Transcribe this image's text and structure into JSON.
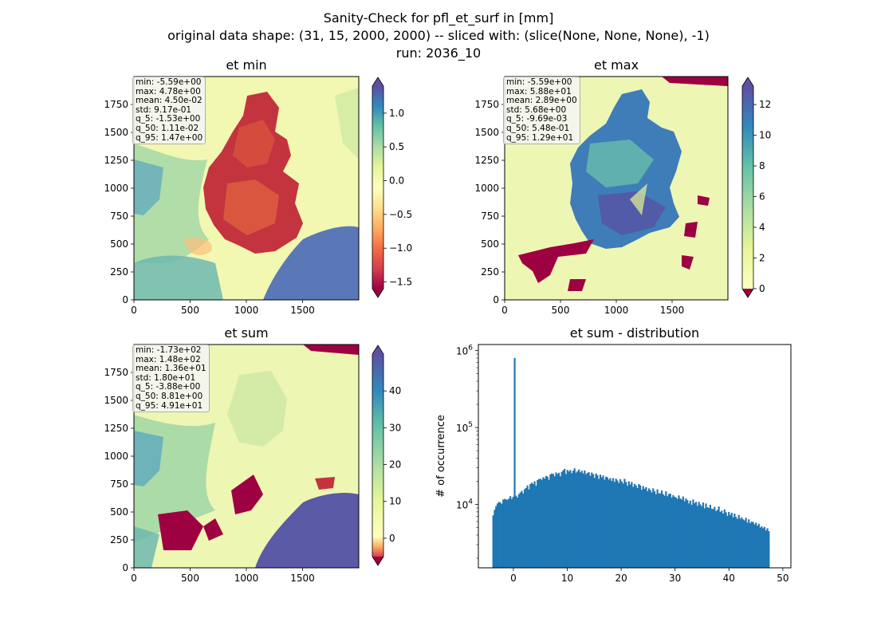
{
  "figure": {
    "title_lines": [
      "Sanity-Check for pfl_et_surf in [mm]",
      "original data shape: (31, 15, 2000, 2000) -- sliced with: (slice(None, None, None), -1)",
      "run: 2036_10"
    ]
  },
  "panels": [
    {
      "title": "et min",
      "stats": [
        "min: -5.59e+00",
        "max: 4.78e+00",
        "mean: 4.50e-02",
        "std: 9.17e-01",
        "q_5: -1.53e+00",
        "q_50: 1.11e-02",
        "q_95: 1.47e+00"
      ],
      "xticks": [
        "0",
        "500",
        "1000",
        "1500"
      ],
      "yticks": [
        "0",
        "250",
        "500",
        "750",
        "1000",
        "1250",
        "1500",
        "1750"
      ],
      "colorbar": {
        "vmin": -1.6,
        "vmax": 1.4,
        "ticks": [
          "1.0",
          "0.5",
          "0.0",
          "−0.5",
          "−1.0",
          "−1.5"
        ],
        "tick_values": [
          1.0,
          0.5,
          0.0,
          -0.5,
          -1.0,
          -1.5
        ]
      }
    },
    {
      "title": "et max",
      "stats": [
        "min: -5.59e+00",
        "max: 5.88e+01",
        "mean: 2.89e+00",
        "std: 5.68e+00",
        "q_5: -9.69e-03",
        "q_50: 5.48e-01",
        "q_95: 1.29e+01"
      ],
      "xticks": [
        "0",
        "500",
        "1000",
        "1500"
      ],
      "yticks": [
        "0",
        "250",
        "500",
        "750",
        "1000",
        "1250",
        "1500",
        "1750"
      ],
      "colorbar": {
        "vmin": 0,
        "vmax": 13.2,
        "ticks": [
          "12",
          "10",
          "8",
          "6",
          "4",
          "2",
          "0"
        ],
        "tick_values": [
          12,
          10,
          8,
          6,
          4,
          2,
          0
        ]
      }
    },
    {
      "title": "et sum",
      "stats": [
        "min: -1.73e+02",
        "max: 1.48e+02",
        "mean: 1.36e+01",
        "std: 1.80e+01",
        "q_5: -3.88e+00",
        "q_50: 8.81e+00",
        "q_95: 4.91e+01"
      ],
      "xticks": [
        "0",
        "500",
        "1000",
        "1500"
      ],
      "yticks": [
        "0",
        "250",
        "500",
        "750",
        "1000",
        "1250",
        "1500",
        "1750"
      ],
      "colorbar": {
        "vmin": -5,
        "vmax": 50,
        "ticks": [
          "40",
          "30",
          "20",
          "10",
          "0"
        ],
        "tick_values": [
          40,
          30,
          20,
          10,
          0
        ]
      }
    }
  ],
  "chart_data": {
    "type": "bar",
    "title": "et sum - distribution",
    "xlabel": "",
    "ylabel": "# of occurrence",
    "yscale": "log",
    "xlim": [
      -6.5,
      51.5
    ],
    "ylim": [
      1500,
      1200000
    ],
    "xticks": [
      "0",
      "10",
      "20",
      "30",
      "40",
      "50"
    ],
    "yticks": [
      "10^4",
      "10^5",
      "10^6"
    ],
    "color": "#1f77b4",
    "bins_x_start": -3.9,
    "bin_width": 0.265,
    "values": [
      7200,
      8500,
      9500,
      10300,
      10800,
      10600,
      10200,
      11600,
      11800,
      11600,
      11500,
      11900,
      12800,
      11800,
      12600,
      800000,
      13000,
      12300,
      13600,
      14300,
      15000,
      13900,
      15800,
      16400,
      17700,
      15700,
      18400,
      19200,
      18400,
      20000,
      17500,
      20700,
      21400,
      21600,
      20900,
      22600,
      21700,
      23500,
      23000,
      21000,
      24500,
      25300,
      24900,
      23200,
      26000,
      24800,
      25800,
      23200,
      26500,
      27800,
      29000,
      24800,
      28100,
      26800,
      28000,
      25500,
      27500,
      29500,
      25900,
      26900,
      28500,
      26200,
      27400,
      25300,
      27600,
      24700,
      25800,
      26200,
      23600,
      26000,
      24800,
      22200,
      25300,
      24000,
      21500,
      24400,
      22600,
      23800,
      21000,
      23000,
      22500,
      21000,
      22000,
      20200,
      22000,
      19600,
      21600,
      20500,
      19000,
      21300,
      19900,
      18700,
      21500,
      19600,
      17500,
      20000,
      18200,
      19600,
      16900,
      18500,
      17600,
      16300,
      18400,
      17700,
      15500,
      17300,
      16000,
      16800,
      14900,
      16200,
      15400,
      14300,
      16200,
      14800,
      13600,
      15700,
      14000,
      13900,
      15200,
      13600,
      13000,
      14800,
      12800,
      13700,
      13800,
      12300,
      13200,
      12600,
      12300,
      11800,
      13100,
      12000,
      11600,
      12700,
      11000,
      12000,
      11400,
      10300,
      11200,
      9900,
      11600,
      10400,
      10800,
      9600,
      10800,
      10000,
      9500,
      10600,
      8900,
      10300,
      9200,
      9000,
      9900,
      8800,
      8700,
      9300,
      8200,
      8500,
      9400,
      8000,
      8300,
      7600,
      8600,
      7900,
      7100,
      8000,
      7300,
      7800,
      6800,
      7600,
      6900,
      6500,
      7300,
      6500,
      6800,
      6400,
      6200,
      6700,
      5800,
      6400,
      5700,
      6000,
      5900,
      5500,
      5800,
      5300,
      5600,
      5000,
      5200,
      4900,
      5100,
      4600,
      4900,
      4500
    ]
  }
}
